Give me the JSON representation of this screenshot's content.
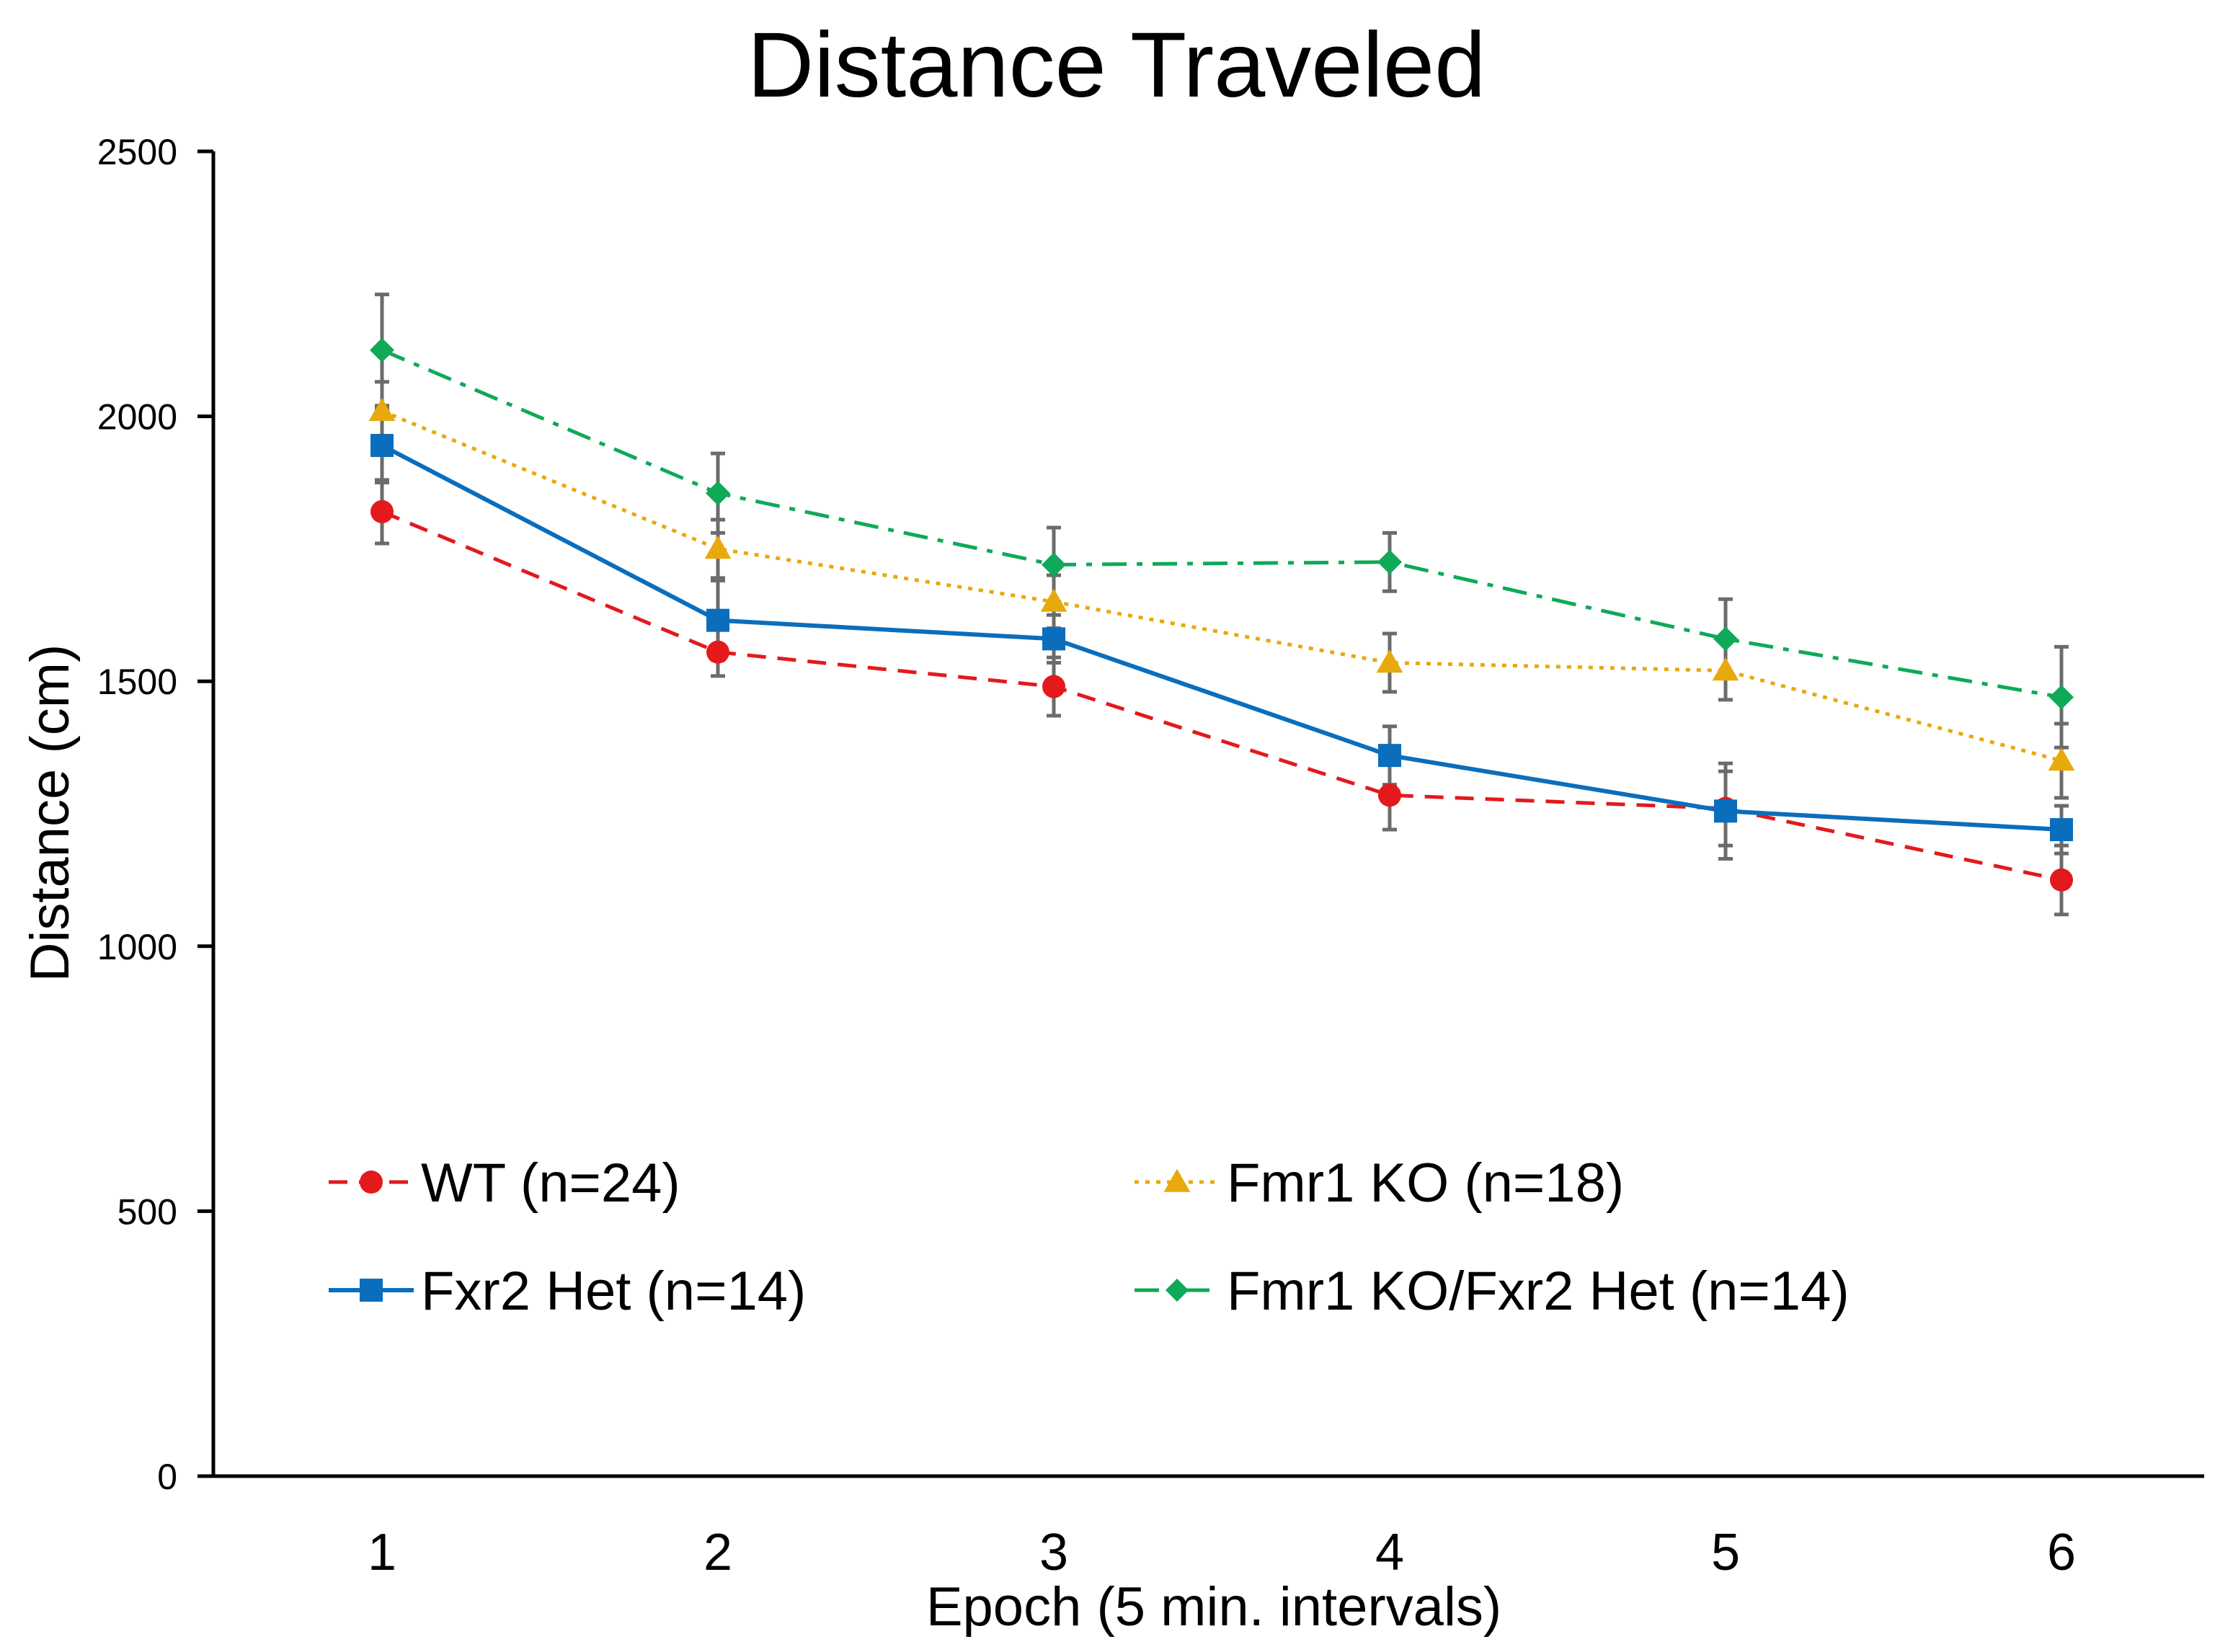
{
  "chart_data": {
    "type": "line",
    "title": "Distance Traveled",
    "xlabel": "Epoch (5 min. intervals)",
    "ylabel": "Distance (cm)",
    "categories": [
      "1",
      "2",
      "3",
      "4",
      "5",
      "6"
    ],
    "ylim": [
      0,
      2500
    ],
    "yticks": [
      0,
      500,
      1000,
      1500,
      2000,
      2500
    ],
    "yticks_labels": [
      "0",
      "500",
      "1000",
      "1500",
      "2000",
      "2500"
    ],
    "grid": false,
    "legend_position": "lower-center",
    "series": [
      {
        "name": "WT (n=24)",
        "color": "#e3191c",
        "marker": "circle",
        "line_style": "dashed",
        "values": [
          1820,
          1555,
          1490,
          1285,
          1260,
          1125
        ],
        "errors": [
          60,
          45,
          55,
          65,
          70,
          65
        ]
      },
      {
        "name": "Fmr1 KO (n=18)",
        "color": "#e8a90c",
        "marker": "triangle",
        "line_style": "dotted",
        "values": [
          2010,
          1750,
          1650,
          1535,
          1520,
          1350
        ],
        "errors": [
          55,
          55,
          50,
          55,
          55,
          70
        ]
      },
      {
        "name": "Fxr2 Het (n=14)",
        "color": "#0a6ebd",
        "marker": "square",
        "line_style": "solid",
        "values": [
          1945,
          1615,
          1580,
          1360,
          1255,
          1220
        ],
        "errors": [
          70,
          75,
          45,
          55,
          90,
          45
        ]
      },
      {
        "name": "Fmr1 KO/Fxr2 Het (n=14)",
        "color": "#0fa958",
        "marker": "diamond",
        "line_style": "dash-dot",
        "values": [
          2125,
          1855,
          1720,
          1725,
          1580,
          1470
        ],
        "errors": [
          105,
          75,
          70,
          55,
          75,
          95
        ]
      }
    ]
  }
}
